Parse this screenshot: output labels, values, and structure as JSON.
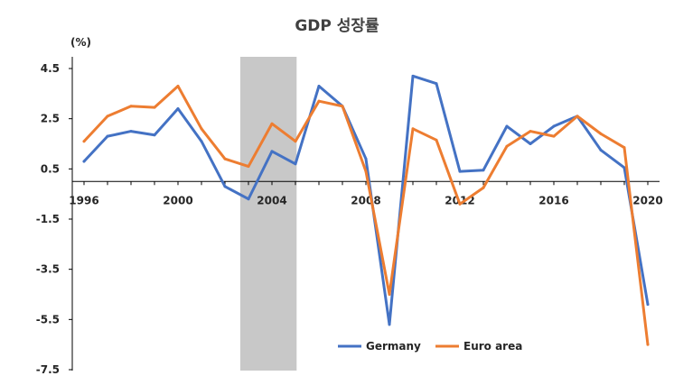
{
  "chart_data": {
    "type": "line",
    "title": "GDP 성장률",
    "ylabel": "(%)",
    "x": [
      1996,
      1997,
      1998,
      1999,
      2000,
      2001,
      2002,
      2003,
      2004,
      2005,
      2006,
      2007,
      2008,
      2009,
      2010,
      2011,
      2012,
      2013,
      2014,
      2015,
      2016,
      2017,
      2018,
      2019,
      2020
    ],
    "x_ticks": [
      "1996",
      "2000",
      "2004",
      "2008",
      "2012",
      "2016",
      "2020"
    ],
    "y_ticks": [
      "4.5",
      "2.5",
      "0.5",
      "-1.5",
      "-3.5",
      "-5.5",
      "-7.5"
    ],
    "ylim": [
      -7.5,
      4.5
    ],
    "xlim": [
      1996,
      2020
    ],
    "shaded_region": [
      2002.65,
      2005.05
    ],
    "grid": false,
    "legend_position": "bottom-right",
    "series": [
      {
        "name": "Germany",
        "color": "#4472C4",
        "values": [
          0.8,
          1.8,
          2.0,
          1.85,
          2.9,
          1.6,
          -0.2,
          -0.7,
          1.2,
          0.7,
          3.8,
          3.0,
          0.9,
          -5.7,
          4.2,
          3.9,
          0.4,
          0.45,
          2.2,
          1.5,
          2.2,
          2.6,
          1.25,
          0.55,
          -4.9
        ]
      },
      {
        "name": "Euro area",
        "color": "#ED7D31",
        "values": [
          1.6,
          2.6,
          3.0,
          2.95,
          3.8,
          2.1,
          0.9,
          0.6,
          2.3,
          1.6,
          3.2,
          3.0,
          0.4,
          -4.5,
          2.1,
          1.65,
          -0.9,
          -0.25,
          1.4,
          2.0,
          1.8,
          2.6,
          1.9,
          1.35,
          -6.5
        ]
      }
    ]
  }
}
